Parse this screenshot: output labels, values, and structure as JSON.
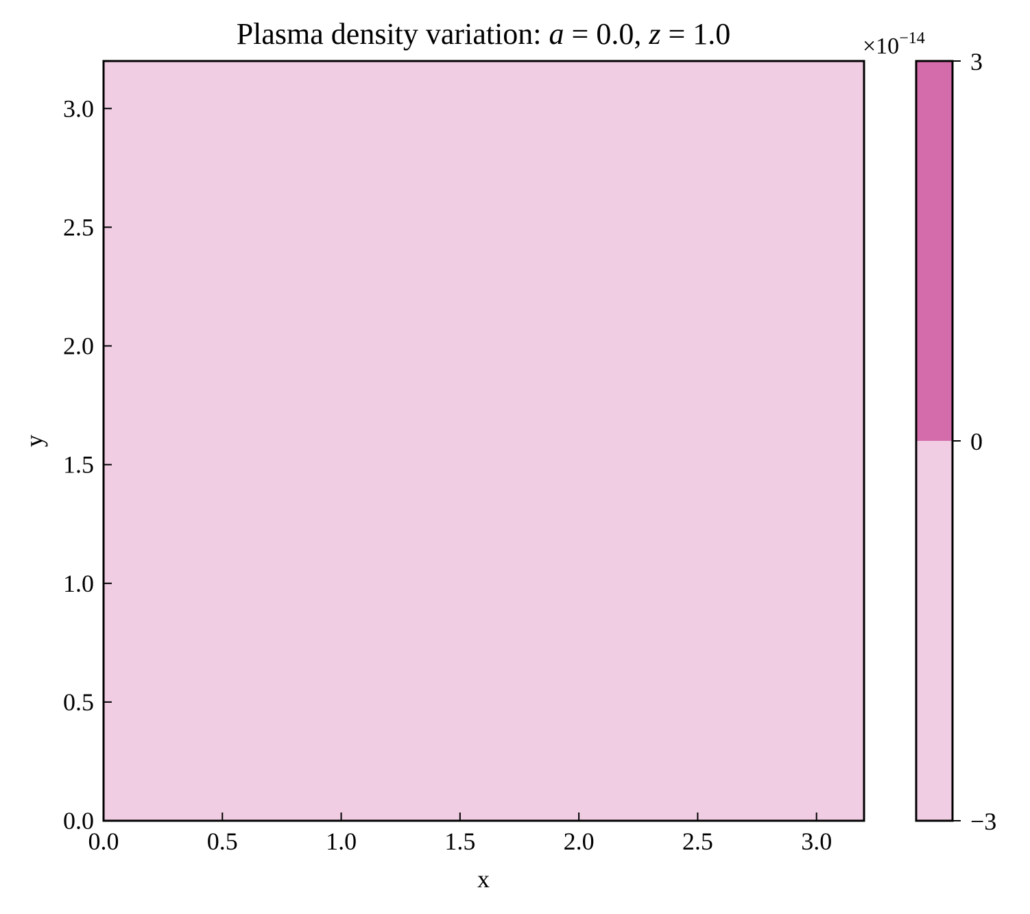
{
  "chart_data": {
    "type": "heatmap",
    "title": {
      "prefix": "Plasma density variation: ",
      "var1": "a",
      "eq1": " = 0.0, ",
      "var2": "z",
      "eq2": " = 1.0"
    },
    "xlabel": "x",
    "ylabel": "y",
    "xlim": [
      0.0,
      3.2
    ],
    "ylim": [
      0.0,
      3.2
    ],
    "xticks": [
      0.0,
      0.5,
      1.0,
      1.5,
      2.0,
      2.5,
      3.0
    ],
    "xtick_labels": [
      "0.0",
      "0.5",
      "1.0",
      "1.5",
      "2.0",
      "2.5",
      "3.0"
    ],
    "yticks": [
      0.0,
      0.5,
      1.0,
      1.5,
      2.0,
      2.5,
      3.0
    ],
    "ytick_labels": [
      "0.0",
      "0.5",
      "1.0",
      "1.5",
      "2.0",
      "2.5",
      "3.0"
    ],
    "field": {
      "description_value": "uniform",
      "level_index": 0
    },
    "colorbar": {
      "levels": [
        -3,
        0,
        3
      ],
      "level_colors": [
        "#f0cde3",
        "#d46cab"
      ],
      "tick_labels": [
        "−3",
        "0",
        "3"
      ],
      "offset_text": {
        "times": "×10",
        "exponent": "−14"
      }
    },
    "fill_color": "#f0cde3",
    "grid": false
  }
}
